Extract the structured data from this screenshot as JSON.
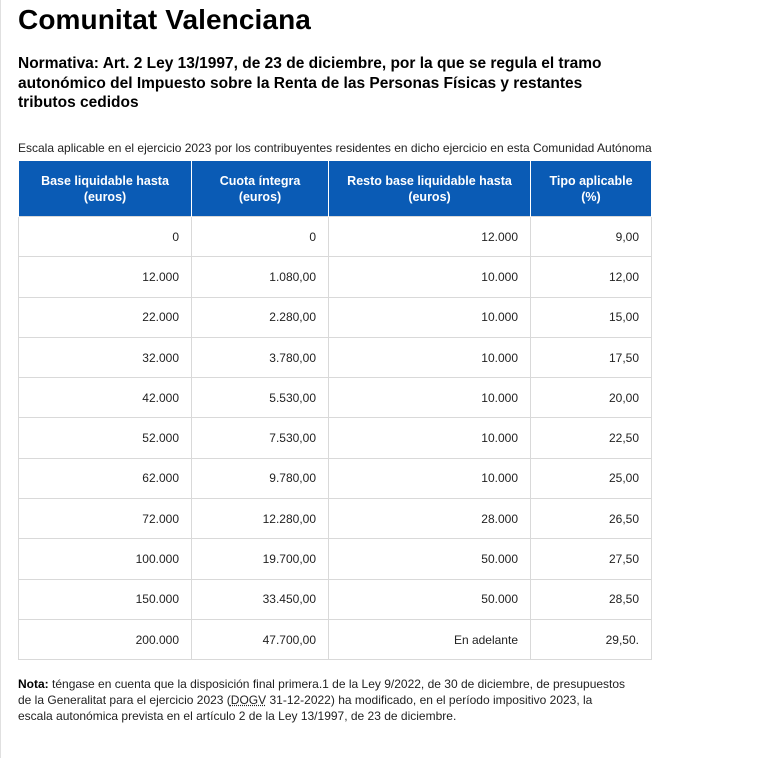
{
  "title": "Comunitat Valenciana",
  "subtitle": "Normativa: Art. 2 Ley 13/1997, de 23 de diciembre, por la que se regula el tramo autonómico del Impuesto sobre la Renta de las Personas Físicas y restantes tributos cedidos",
  "intro": "Escala aplicable en el ejercicio 2023 por los contribuyentes residentes en dicho ejercicio en esta Comunidad Autónoma",
  "table": {
    "headers": [
      "Base liquidable hasta (euros)",
      "Cuota íntegra (euros)",
      "Resto base liquidable hasta (euros)",
      "Tipo aplicable (%)"
    ],
    "rows": [
      [
        "0",
        "0",
        "12.000",
        "9,00"
      ],
      [
        "12.000",
        "1.080,00",
        "10.000",
        "12,00"
      ],
      [
        "22.000",
        "2.280,00",
        "10.000",
        "15,00"
      ],
      [
        "32.000",
        "3.780,00",
        "10.000",
        "17,50"
      ],
      [
        "42.000",
        "5.530,00",
        "10.000",
        "20,00"
      ],
      [
        "52.000",
        "7.530,00",
        "10.000",
        "22,50"
      ],
      [
        "62.000",
        "9.780,00",
        "10.000",
        "25,00"
      ],
      [
        "72.000",
        "12.280,00",
        "28.000",
        "26,50"
      ],
      [
        "100.000",
        "19.700,00",
        "50.000",
        "27,50"
      ],
      [
        "150.000",
        "33.450,00",
        "50.000",
        "28,50"
      ],
      [
        "200.000",
        "47.700,00",
        "En adelante",
        "29,50."
      ]
    ]
  },
  "note": {
    "label": "Nota:",
    "text_before": " téngase en cuenta que la disposición final primera.1 de la Ley 9/2022, de 30 de diciembre, de presupuestos de la Generalitat para el ejercicio 2023 (",
    "abbr": "DOGV",
    "text_after": "  31-12-2022) ha modificado, en el período impositivo 2023, la escala autonómica prevista en el artículo 2 de la Ley 13/1997, de 23 de diciembre."
  },
  "colors": {
    "header_bg": "#0a5bb5",
    "header_text": "#ffffff",
    "cell_border": "#d9d9d9"
  }
}
